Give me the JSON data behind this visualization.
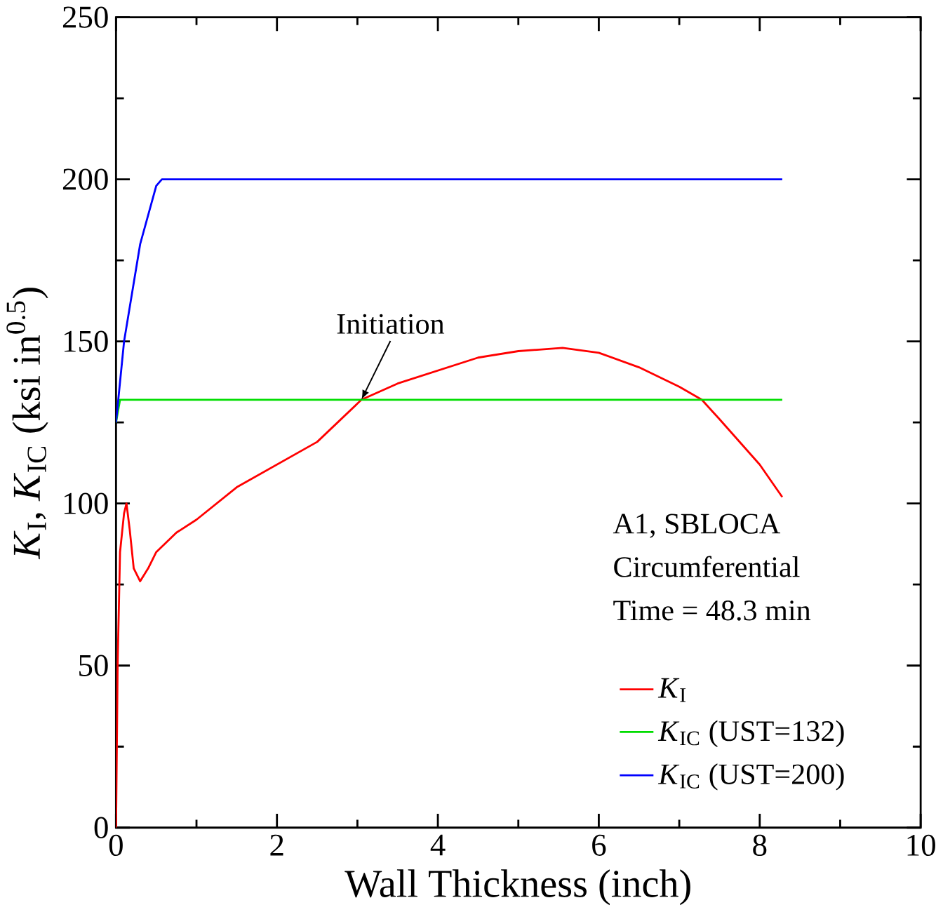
{
  "chart_data": {
    "type": "line",
    "xlabel": "Wall Thickness (inch)",
    "ylabel": "*K*$_{I}$, *K*$_{IC}$ (ksi in$^{0.5}$)",
    "xlim": [
      0,
      10
    ],
    "ylim": [
      0,
      250
    ],
    "xticks": [
      0,
      2,
      4,
      6,
      8,
      10
    ],
    "yticks": [
      0,
      50,
      100,
      150,
      200,
      250
    ],
    "legend": "bottom right",
    "grid": false,
    "annotations": [
      "A1, SBLOCA",
      "Circumferential",
      "Time = 48.3 min",
      {
        "text": "Initiation",
        "x": 3.05,
        "y": 132
      }
    ],
    "series": [
      {
        "name": "*K*$_{I}$",
        "color": "#ff0000",
        "x": [
          0,
          0.02,
          0.05,
          0.1,
          0.13,
          0.17,
          0.22,
          0.3,
          0.4,
          0.5,
          0.75,
          1,
          1.5,
          2,
          2.5,
          3.05,
          3.5,
          4,
          4.5,
          5,
          5.55,
          6,
          6.5,
          7,
          7.28,
          7.5,
          8,
          8.28
        ],
        "values": [
          0,
          50,
          85,
          97,
          100,
          92,
          80,
          76,
          80,
          85,
          91,
          95,
          105,
          112,
          119,
          132,
          137,
          141,
          145,
          147,
          148,
          146.5,
          142,
          136,
          132,
          126,
          112,
          102
        ]
      },
      {
        "name": "*K*$_{IC}$ (UST=132)",
        "color": "#00dd00",
        "x": [
          0,
          0.05,
          8.28
        ],
        "values": [
          125,
          132,
          132
        ]
      },
      {
        "name": "*K*$_{IC}$ (UST=200)",
        "color": "#0000ff",
        "x": [
          0,
          0.1,
          0.3,
          0.5,
          0.57,
          8.28
        ],
        "values": [
          125,
          150,
          180,
          198,
          200,
          200
        ]
      }
    ]
  }
}
